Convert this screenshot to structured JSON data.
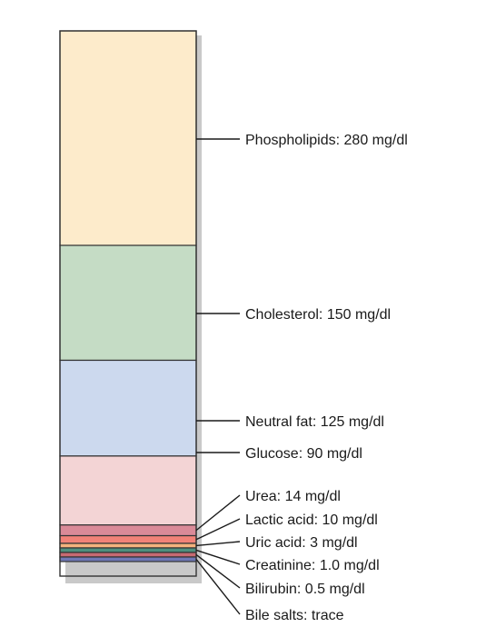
{
  "chart_data": {
    "type": "bar",
    "title": "",
    "xlabel": "",
    "ylabel": "",
    "stacked": true,
    "unit": "mg/dl",
    "grid": false,
    "legend": "labels to the right of the stacked column",
    "segments": [
      {
        "name": "Phospholipids",
        "value": 280,
        "label": "Phospholipids: 280 mg/dl",
        "color": "#fdebcb"
      },
      {
        "name": "Cholesterol",
        "value": 150,
        "label": "Cholesterol: 150 mg/dl",
        "color": "#c5dcc5"
      },
      {
        "name": "Neutral fat",
        "value": 125,
        "label": "Neutral fat: 125 mg/dl",
        "color": "#ccd9ee"
      },
      {
        "name": "Glucose",
        "value": 90,
        "label": "Glucose: 90 mg/dl",
        "color": "#f3d4d5"
      },
      {
        "name": "Urea",
        "value": 14,
        "label": "Urea: 14 mg/dl",
        "color": "#da8a98"
      },
      {
        "name": "Lactic acid",
        "value": 10,
        "label": "Lactic acid: 10 mg/dl",
        "color": "#f28278"
      },
      {
        "name": "Uric acid",
        "value": 3,
        "label": "Uric acid: 3 mg/dl",
        "color": "#f5b27d"
      },
      {
        "name": "Creatinine",
        "value": 1.0,
        "label": "Creatinine: 1.0 mg/dl",
        "color": "#4e8f7e"
      },
      {
        "name": "Bilirubin",
        "value": 0.5,
        "label": "Bilirubin: 0.5 mg/dl",
        "color": "#c76a72"
      },
      {
        "name": "Bile salts",
        "value": "trace",
        "label": "Bile salts: trace",
        "color": "#6f78b5"
      }
    ]
  }
}
